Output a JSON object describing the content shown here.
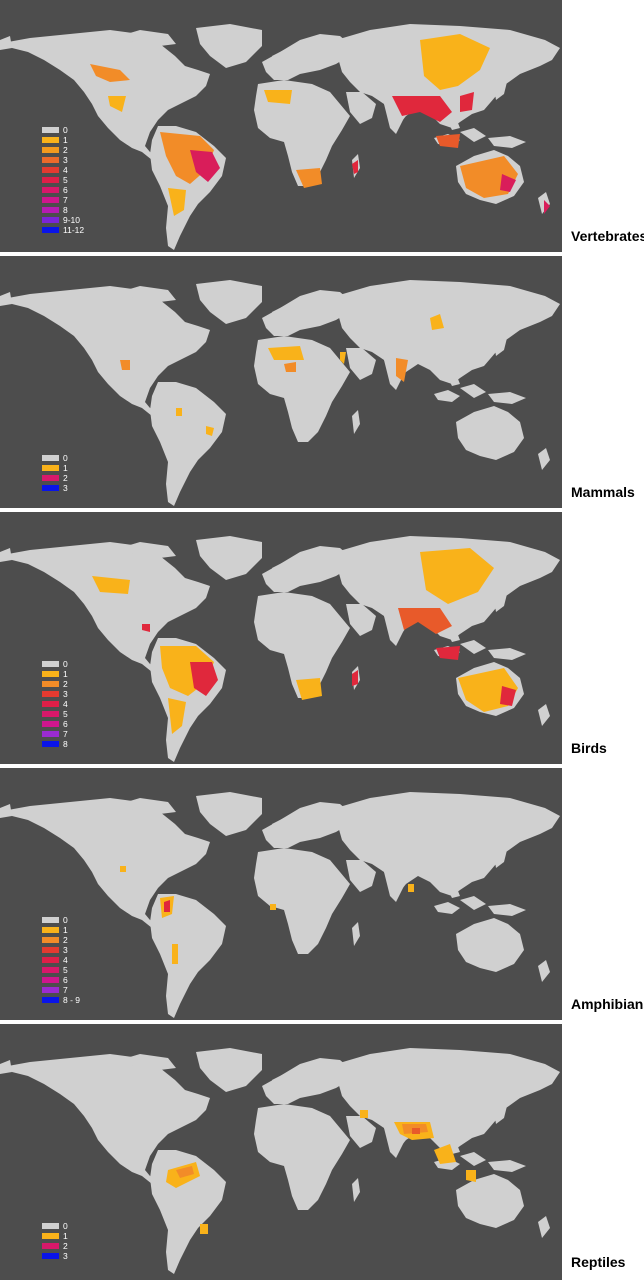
{
  "colors": {
    "ocean": "#4d4d4d",
    "land": "#d0d0d0",
    "level_0": "#d0d0d0",
    "level_1": "#f9b21a",
    "level_2": "#f28c28",
    "level_3": "#e85a2a",
    "level_4": "#e0283c",
    "level_5": "#d91d5a",
    "level_6": "#d4157a",
    "level_7": "#c31aa6",
    "level_8": "#9a2bd0",
    "level_9": "#5a20e0",
    "level_10": "#0a14e8"
  },
  "panels": [
    {
      "title": "Vertebrates",
      "legend": [
        {
          "label": "0",
          "color": "#d0d0d0"
        },
        {
          "label": "1",
          "color": "#f9b21a"
        },
        {
          "label": "2",
          "color": "#f39a1e"
        },
        {
          "label": "3",
          "color": "#ec6a2a"
        },
        {
          "label": "4",
          "color": "#e43a30"
        },
        {
          "label": "5",
          "color": "#de1f48"
        },
        {
          "label": "6",
          "color": "#d8186a"
        },
        {
          "label": "7",
          "color": "#cf168d"
        },
        {
          "label": "8",
          "color": "#b61cb2"
        },
        {
          "label": "9-10",
          "color": "#7a25d8"
        },
        {
          "label": "11-12",
          "color": "#0a14e8"
        }
      ]
    },
    {
      "title": "Mammals",
      "legend": [
        {
          "label": "0",
          "color": "#d0d0d0"
        },
        {
          "label": "1",
          "color": "#f9b21a"
        },
        {
          "label": "2",
          "color": "#d8186a"
        },
        {
          "label": "3",
          "color": "#0a14e8"
        }
      ]
    },
    {
      "title": "Birds",
      "legend": [
        {
          "label": "0",
          "color": "#d0d0d0"
        },
        {
          "label": "1",
          "color": "#f9b21a"
        },
        {
          "label": "2",
          "color": "#f28c28"
        },
        {
          "label": "3",
          "color": "#e43a30"
        },
        {
          "label": "4",
          "color": "#de1f48"
        },
        {
          "label": "5",
          "color": "#d8186a"
        },
        {
          "label": "6",
          "color": "#cf168d"
        },
        {
          "label": "7",
          "color": "#9a2bd0"
        },
        {
          "label": "8",
          "color": "#0a14e8"
        }
      ]
    },
    {
      "title": "Amphibians",
      "legend": [
        {
          "label": "0",
          "color": "#d0d0d0"
        },
        {
          "label": "1",
          "color": "#f9b21a"
        },
        {
          "label": "2",
          "color": "#f28c28"
        },
        {
          "label": "3",
          "color": "#e43a30"
        },
        {
          "label": "4",
          "color": "#de1f48"
        },
        {
          "label": "5",
          "color": "#d8186a"
        },
        {
          "label": "6",
          "color": "#cf168d"
        },
        {
          "label": "7",
          "color": "#9a2bd0"
        },
        {
          "label": "8 - 9",
          "color": "#0a14e8"
        }
      ]
    },
    {
      "title": "Reptiles",
      "legend": [
        {
          "label": "0",
          "color": "#d0d0d0"
        },
        {
          "label": "1",
          "color": "#f9b21a"
        },
        {
          "label": "2",
          "color": "#d8186a"
        },
        {
          "label": "3",
          "color": "#0a14e8"
        }
      ]
    }
  ]
}
